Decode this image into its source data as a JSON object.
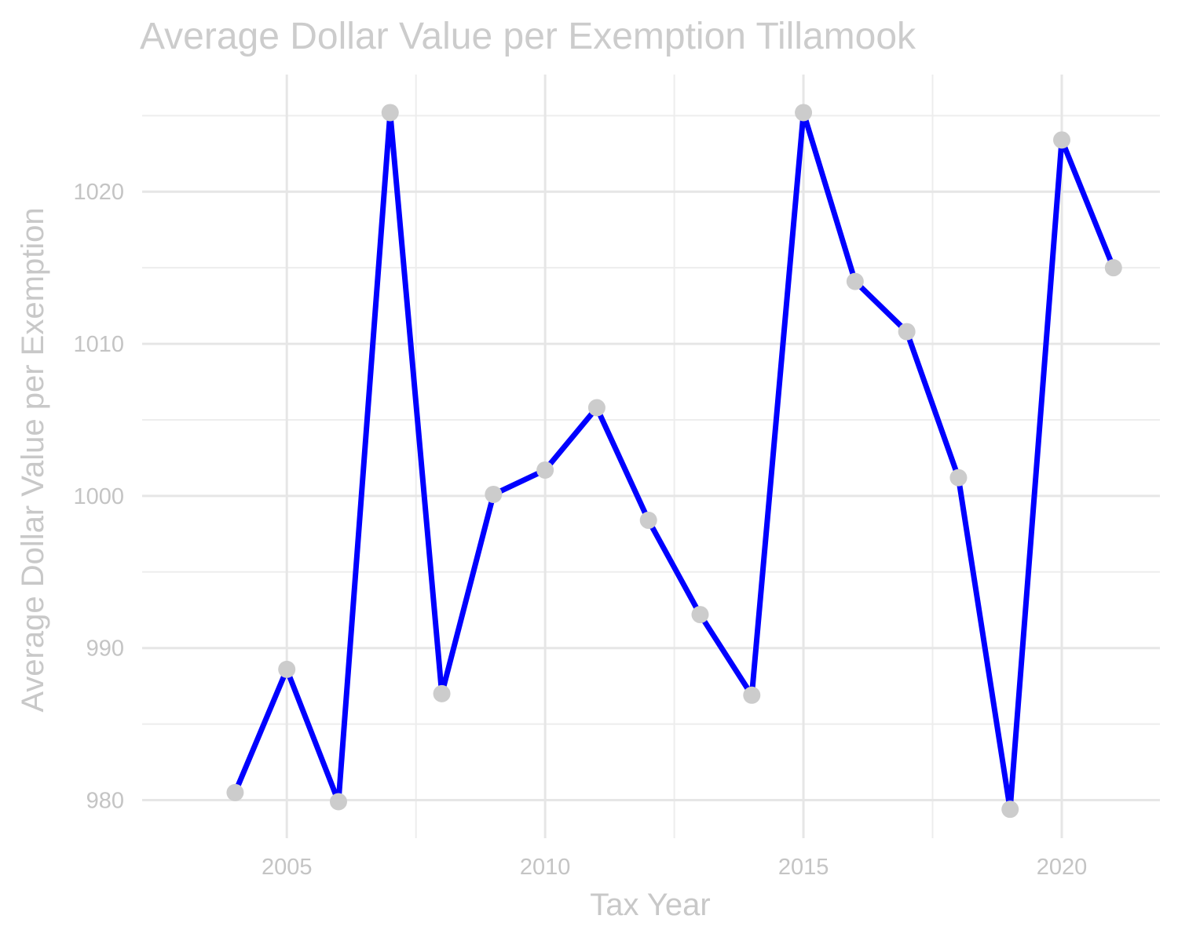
{
  "chart_data": {
    "type": "line",
    "title": "Average Dollar Value per Exemption Tillamook",
    "xlabel": "Tax Year",
    "ylabel": "Average Dollar Value per Exemption",
    "x": [
      2004,
      2005,
      2006,
      2007,
      2008,
      2009,
      2010,
      2011,
      2012,
      2013,
      2014,
      2015,
      2016,
      2017,
      2018,
      2019,
      2020,
      2021
    ],
    "series": [
      {
        "values": [
          980.5,
          988.6,
          979.9,
          1025.2,
          987.0,
          1000.1,
          1001.7,
          1005.8,
          998.4,
          992.2,
          986.9,
          1025.2,
          1014.1,
          1010.8,
          1001.2,
          979.4,
          1023.4,
          1015.0
        ]
      }
    ],
    "xlim": [
      2002.2,
      2021.9
    ],
    "ylim": [
      977.5,
      1027.7
    ],
    "x_ticks": [
      2005,
      2010,
      2015,
      2020
    ],
    "y_ticks": [
      980,
      990,
      1000,
      1010,
      1020
    ],
    "grid": true,
    "line_color": "#0000ff",
    "point_color": "#cccccc"
  }
}
